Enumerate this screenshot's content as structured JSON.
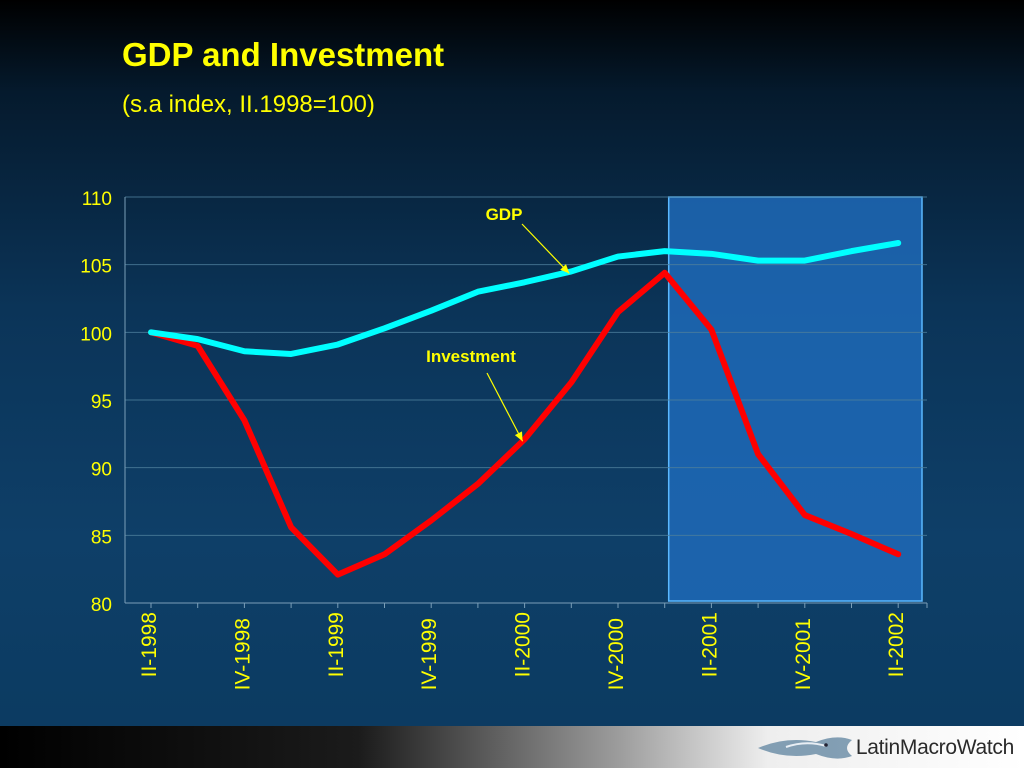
{
  "title": "GDP and Investment",
  "subtitle": "(s.a index, II.1998=100)",
  "logo": {
    "text": "LatinMacroWatch",
    "icon": "fish-logo-icon"
  },
  "colors": {
    "title": "#ffff00",
    "gdp": "#00ffff",
    "investment": "#ff0000",
    "axis_text": "#ffff00",
    "annotation_text": "#ffff00",
    "highlight_fill": "#1e6ab8",
    "highlight_border": "#5ab8ff"
  },
  "chart_data": {
    "type": "line",
    "x": [
      "II-1998",
      "III-1998",
      "IV-1998",
      "I-1999",
      "II-1999",
      "III-1999",
      "IV-1999",
      "I-2000",
      "II-2000",
      "III-2000",
      "IV-2000",
      "I-2001",
      "II-2001",
      "III-2001",
      "IV-2001",
      "I-2002",
      "II-2002"
    ],
    "tick_labels": [
      "II-1998",
      "IV-1998",
      "II-1999",
      "IV-1999",
      "II-2000",
      "IV-2000",
      "II-2001",
      "IV-2001",
      "II-2002"
    ],
    "ylim": [
      80,
      110
    ],
    "yticks": [
      80,
      85,
      90,
      95,
      100,
      105,
      110
    ],
    "grid": true,
    "series": [
      {
        "name": "GDP",
        "values": [
          100.0,
          99.5,
          98.6,
          98.4,
          99.1,
          100.3,
          101.6,
          103.0,
          103.7,
          104.5,
          105.6,
          106.0,
          105.8,
          105.3,
          105.3,
          106.0,
          106.6
        ]
      },
      {
        "name": "Investment",
        "values": [
          100.0,
          99.0,
          93.5,
          85.6,
          82.1,
          83.6,
          86.1,
          88.8,
          92.1,
          96.3,
          101.5,
          104.4,
          100.2,
          91.0,
          86.5,
          85.1,
          83.6
        ]
      }
    ],
    "annotations": [
      {
        "text": "GDP",
        "target_series": "GDP",
        "target_x": "III-2000"
      },
      {
        "text": "Investment",
        "target_series": "Investment",
        "target_x": "II-2000"
      }
    ],
    "highlight": {
      "from_x": "I-2001",
      "to_x": "II-2002"
    }
  }
}
